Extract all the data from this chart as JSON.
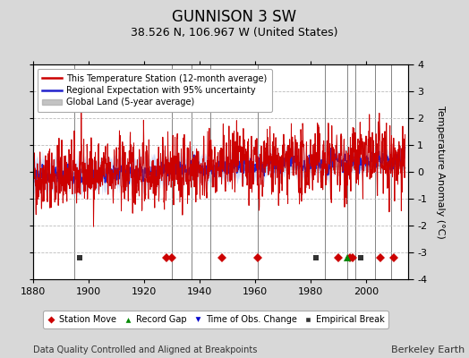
{
  "title": "GUNNISON 3 SW",
  "subtitle": "38.526 N, 106.967 W (United States)",
  "ylabel": "Temperature Anomaly (°C)",
  "xlabel_note": "Data Quality Controlled and Aligned at Breakpoints",
  "credit": "Berkeley Earth",
  "ylim": [
    -4,
    4
  ],
  "xlim": [
    1880,
    2015
  ],
  "yticks": [
    -4,
    -3,
    -2,
    -1,
    0,
    1,
    2,
    3,
    4
  ],
  "xticks": [
    1880,
    1900,
    1920,
    1940,
    1960,
    1980,
    2000
  ],
  "bg_color": "#d8d8d8",
  "plot_bg_color": "#ffffff",
  "grid_color": "#bbbbbb",
  "station_color": "#cc0000",
  "regional_color": "#2222cc",
  "regional_fill_color": "#aabbee",
  "global_color": "#aaaaaa",
  "title_fontsize": 12,
  "subtitle_fontsize": 9,
  "tick_labelsize": 8,
  "legend_fontsize": 7,
  "note_fontsize": 7,
  "marker_y": -3.2,
  "marker_size": 5,
  "vertical_lines": [
    1895,
    1930,
    1937,
    1944,
    1961,
    1985,
    1993,
    1996,
    2003,
    2009
  ],
  "marker_events": {
    "station_move": {
      "years": [
        1928,
        1930,
        1948,
        1961,
        1990,
        1994,
        1995,
        2005,
        2010
      ],
      "color": "#cc0000",
      "marker": "D",
      "label": "Station Move"
    },
    "record_gap": {
      "years": [
        1993
      ],
      "color": "#008800",
      "marker": "^",
      "label": "Record Gap"
    },
    "time_obs": {
      "years": [],
      "color": "#0000cc",
      "marker": "v",
      "label": "Time of Obs. Change"
    },
    "empirical": {
      "years": [
        1897,
        1982,
        1998
      ],
      "color": "#333333",
      "marker": "s",
      "label": "Empirical Break"
    }
  },
  "seed": 42
}
